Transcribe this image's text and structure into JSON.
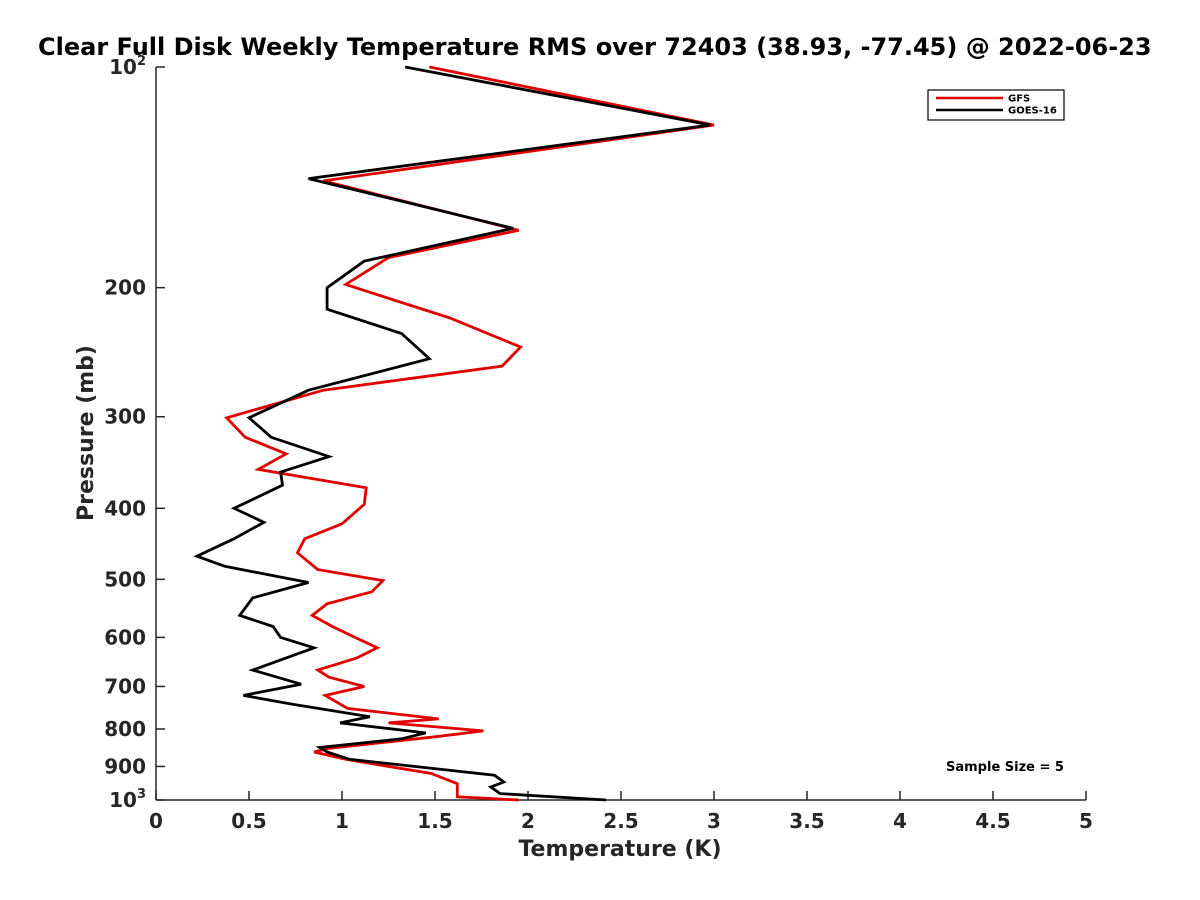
{
  "chart_data": {
    "type": "line",
    "title": "Clear Full Disk Weekly Temperature RMS over 72403 (38.93, -77.45) @ 2022-06-23",
    "xlabel": "Temperature (K)",
    "ylabel": "Pressure (mb)",
    "xlim": [
      0,
      5
    ],
    "ylim": [
      100,
      1000
    ],
    "y_scale": "log",
    "y_reversed": true,
    "x_ticks": [
      0,
      0.5,
      1,
      1.5,
      2,
      2.5,
      3,
      3.5,
      4,
      4.5,
      5
    ],
    "x_tick_labels": [
      "0",
      "0.5",
      "1",
      "1.5",
      "2",
      "2.5",
      "3",
      "3.5",
      "4",
      "4.5",
      "5"
    ],
    "y_ticks": [
      {
        "value": 100,
        "base": "10",
        "exp": "2"
      },
      {
        "value": 200,
        "label": "200"
      },
      {
        "value": 300,
        "label": "300"
      },
      {
        "value": 400,
        "label": "400"
      },
      {
        "value": 500,
        "label": "500"
      },
      {
        "value": 600,
        "label": "600"
      },
      {
        "value": 700,
        "label": "700"
      },
      {
        "value": 800,
        "label": "800"
      },
      {
        "value": 900,
        "label": "900"
      },
      {
        "value": 1000,
        "base": "10",
        "exp": "3"
      }
    ],
    "grid": false,
    "legend_position": "top-right",
    "annotation": "Sample Size = 5",
    "series": [
      {
        "name": "GFS",
        "color": "#e00000",
        "points": [
          [
            1.47,
            100
          ],
          [
            3.0,
            120
          ],
          [
            0.9,
            143
          ],
          [
            1.95,
            167
          ],
          [
            1.25,
            182
          ],
          [
            1.02,
            198
          ],
          [
            1.58,
            220
          ],
          [
            1.96,
            241
          ],
          [
            1.86,
            256
          ],
          [
            0.9,
            276
          ],
          [
            0.38,
            301
          ],
          [
            0.48,
            320
          ],
          [
            0.7,
            337
          ],
          [
            0.55,
            354
          ],
          [
            1.13,
            375
          ],
          [
            1.12,
            395
          ],
          [
            1.0,
            420
          ],
          [
            0.8,
            440
          ],
          [
            0.76,
            460
          ],
          [
            0.87,
            485
          ],
          [
            1.22,
            502
          ],
          [
            1.16,
            520
          ],
          [
            0.92,
            540
          ],
          [
            0.84,
            560
          ],
          [
            0.95,
            580
          ],
          [
            1.07,
            600
          ],
          [
            1.19,
            620
          ],
          [
            1.08,
            640
          ],
          [
            0.87,
            665
          ],
          [
            0.93,
            680
          ],
          [
            1.12,
            700
          ],
          [
            0.91,
            720
          ],
          [
            1.03,
            750
          ],
          [
            1.52,
            775
          ],
          [
            1.25,
            785
          ],
          [
            1.76,
            805
          ],
          [
            1.5,
            820
          ],
          [
            0.93,
            850
          ],
          [
            0.85,
            860
          ],
          [
            1.02,
            880
          ],
          [
            1.48,
            920
          ],
          [
            1.62,
            950
          ],
          [
            1.62,
            990
          ],
          [
            1.95,
            1000
          ]
        ]
      },
      {
        "name": "GOES-16",
        "color": "#000000",
        "points": [
          [
            1.34,
            100
          ],
          [
            2.98,
            120
          ],
          [
            0.82,
            142
          ],
          [
            1.92,
            166
          ],
          [
            1.12,
            184
          ],
          [
            0.92,
            200
          ],
          [
            0.92,
            214
          ],
          [
            1.32,
            231
          ],
          [
            1.47,
            250
          ],
          [
            0.82,
            276
          ],
          [
            0.5,
            301
          ],
          [
            0.62,
            320
          ],
          [
            0.93,
            340
          ],
          [
            0.67,
            357
          ],
          [
            0.68,
            372
          ],
          [
            0.42,
            400
          ],
          [
            0.58,
            418
          ],
          [
            0.42,
            440
          ],
          [
            0.22,
            465
          ],
          [
            0.37,
            480
          ],
          [
            0.82,
            505
          ],
          [
            0.52,
            530
          ],
          [
            0.45,
            560
          ],
          [
            0.63,
            580
          ],
          [
            0.67,
            600
          ],
          [
            0.85,
            620
          ],
          [
            0.7,
            640
          ],
          [
            0.52,
            665
          ],
          [
            0.78,
            695
          ],
          [
            0.47,
            720
          ],
          [
            0.73,
            740
          ],
          [
            1.15,
            770
          ],
          [
            0.99,
            785
          ],
          [
            1.45,
            810
          ],
          [
            1.32,
            825
          ],
          [
            0.88,
            848
          ],
          [
            0.92,
            860
          ],
          [
            1.04,
            880
          ],
          [
            1.82,
            925
          ],
          [
            1.87,
            945
          ],
          [
            1.8,
            960
          ],
          [
            1.85,
            980
          ],
          [
            2.42,
            1000
          ]
        ]
      }
    ]
  }
}
